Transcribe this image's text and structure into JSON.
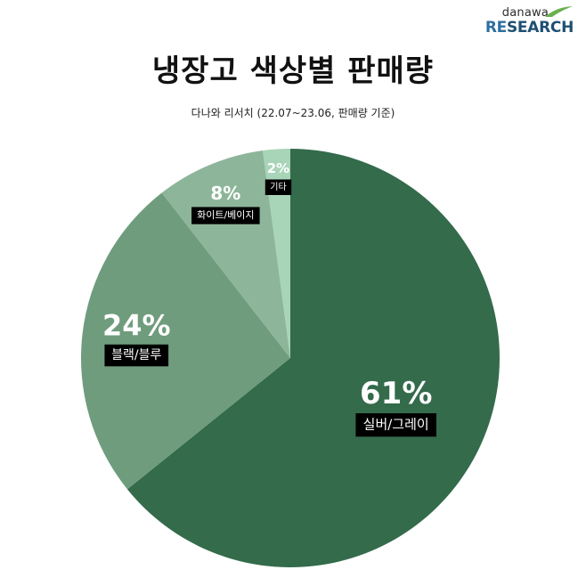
{
  "logo": {
    "small": "danawa",
    "big_prefix": "RE",
    "big_rest": "SEARCH"
  },
  "header": {
    "title": "냉장고 색상별 판매량",
    "subtitle": "다나와 리서치 (22.07~23.06, 판매량 기준)"
  },
  "colors": {
    "silver_gray": "#336b4b",
    "black_blue": "#6f9c7d",
    "white_beige": "#8db59a",
    "other": "#a8d4b8"
  },
  "chart_data": {
    "type": "pie",
    "title": "냉장고 색상별 판매량",
    "subtitle": "다나와 리서치 (22.07~23.06, 판매량 기준)",
    "start": "12 o'clock, clockwise",
    "slices": [
      {
        "label": "실버/그레이",
        "value": 61,
        "value_label": "61%",
        "color": "#336b4b"
      },
      {
        "label": "블랙/블루",
        "value": 24,
        "value_label": "24%",
        "color": "#6f9c7d"
      },
      {
        "label": "화이트/베이지",
        "value": 8,
        "value_label": "8%",
        "color": "#8db59a"
      },
      {
        "label": "기타",
        "value": 2,
        "value_label": "2%",
        "color": "#a8d4b8"
      }
    ]
  }
}
